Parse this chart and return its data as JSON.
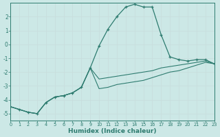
{
  "xlabel": "Humidex (Indice chaleur)",
  "background_color": "#cce8e6",
  "grid_color": "#b8d8d6",
  "line_color": "#2d7b6f",
  "xlim": [
    0,
    23
  ],
  "ylim": [
    -5.5,
    3.0
  ],
  "xticks": [
    0,
    1,
    2,
    3,
    4,
    5,
    6,
    7,
    8,
    9,
    10,
    11,
    12,
    13,
    14,
    15,
    16,
    17,
    18,
    19,
    20,
    21,
    22,
    23
  ],
  "yticks": [
    -5,
    -4,
    -3,
    -2,
    -1,
    0,
    1,
    2
  ],
  "main_x": [
    0,
    1,
    2,
    3,
    4,
    5,
    6,
    7,
    8,
    9,
    10,
    11,
    12,
    13,
    14,
    15,
    16,
    17,
    18,
    19,
    20,
    21,
    22,
    23
  ],
  "main_y": [
    -4.5,
    -4.7,
    -4.9,
    -5.0,
    -4.2,
    -3.8,
    -3.7,
    -3.5,
    -3.1,
    -1.7,
    -0.1,
    1.1,
    2.0,
    2.7,
    2.9,
    2.7,
    2.7,
    0.7,
    -0.9,
    -1.1,
    -1.2,
    -1.1,
    -1.1,
    -1.4
  ],
  "line2_x": [
    0,
    1,
    2,
    3,
    4,
    5,
    6,
    7,
    8,
    9,
    10,
    11,
    12,
    13,
    14,
    15,
    16,
    17,
    18,
    19,
    20,
    21,
    22,
    23
  ],
  "line2_y": [
    -4.5,
    -4.7,
    -4.9,
    -5.0,
    -4.2,
    -3.8,
    -3.7,
    -3.5,
    -3.1,
    -1.7,
    -2.5,
    -2.4,
    -2.3,
    -2.2,
    -2.1,
    -2.0,
    -1.9,
    -1.7,
    -1.6,
    -1.5,
    -1.4,
    -1.3,
    -1.2,
    -1.4
  ],
  "line3_x": [
    0,
    1,
    2,
    3,
    4,
    5,
    6,
    7,
    8,
    9,
    10,
    11,
    12,
    13,
    14,
    15,
    16,
    17,
    18,
    19,
    20,
    21,
    22,
    23
  ],
  "line3_y": [
    -4.5,
    -4.7,
    -4.9,
    -5.0,
    -4.2,
    -3.8,
    -3.7,
    -3.5,
    -3.1,
    -1.7,
    -3.2,
    -3.1,
    -2.9,
    -2.8,
    -2.7,
    -2.6,
    -2.4,
    -2.2,
    -2.0,
    -1.9,
    -1.7,
    -1.5,
    -1.3,
    -1.4
  ]
}
